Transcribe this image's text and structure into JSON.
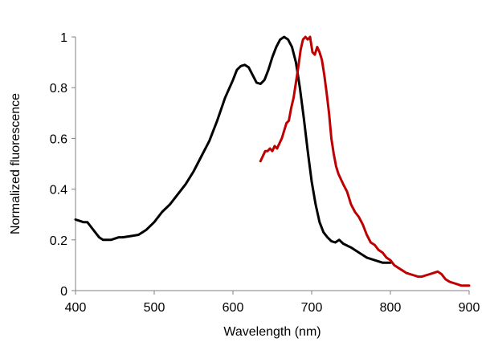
{
  "chart_data": {
    "type": "line",
    "title": "",
    "xlabel": "Wavelength (nm)",
    "ylabel": "Normalized fluorescence",
    "xlim": [
      400,
      900
    ],
    "ylim": [
      0,
      1
    ],
    "xticks": [
      400,
      500,
      600,
      700,
      800,
      900
    ],
    "yticks": [
      0,
      0.2,
      0.4,
      0.6,
      0.8,
      1
    ],
    "ytick_labels": [
      "0",
      "0.2",
      "0.4",
      "0.6",
      "0.8",
      "1"
    ],
    "grid": false,
    "legend": false,
    "series": [
      {
        "color": "#000000",
        "x": [
          400,
          405,
          410,
          415,
          420,
          425,
          430,
          435,
          440,
          445,
          450,
          455,
          460,
          470,
          480,
          490,
          500,
          510,
          520,
          530,
          540,
          550,
          560,
          570,
          580,
          590,
          600,
          605,
          610,
          615,
          620,
          625,
          630,
          635,
          640,
          645,
          650,
          655,
          660,
          665,
          670,
          675,
          680,
          685,
          690,
          695,
          700,
          705,
          710,
          715,
          720,
          725,
          730,
          735,
          740,
          750,
          760,
          770,
          780,
          790,
          800
        ],
        "y": [
          0.28,
          0.275,
          0.27,
          0.27,
          0.25,
          0.23,
          0.21,
          0.2,
          0.2,
          0.2,
          0.205,
          0.21,
          0.21,
          0.215,
          0.22,
          0.24,
          0.27,
          0.31,
          0.34,
          0.38,
          0.42,
          0.47,
          0.53,
          0.59,
          0.67,
          0.76,
          0.83,
          0.87,
          0.885,
          0.89,
          0.88,
          0.85,
          0.82,
          0.815,
          0.83,
          0.87,
          0.92,
          0.96,
          0.99,
          1.0,
          0.99,
          0.96,
          0.9,
          0.8,
          0.68,
          0.55,
          0.43,
          0.34,
          0.27,
          0.23,
          0.21,
          0.195,
          0.19,
          0.2,
          0.185,
          0.17,
          0.15,
          0.13,
          0.12,
          0.11,
          0.11
        ]
      },
      {
        "color": "#c00000",
        "x": [
          635,
          638,
          641,
          644,
          647,
          650,
          653,
          656,
          659,
          662,
          665,
          668,
          671,
          674,
          677,
          680,
          683,
          686,
          689,
          692,
          695,
          698,
          701,
          704,
          707,
          710,
          713,
          716,
          719,
          722,
          725,
          728,
          731,
          734,
          737,
          740,
          745,
          750,
          755,
          760,
          765,
          770,
          775,
          780,
          785,
          790,
          795,
          800,
          805,
          810,
          815,
          820,
          825,
          830,
          835,
          840,
          845,
          850,
          855,
          860,
          865,
          870,
          875,
          880,
          885,
          890,
          895,
          900
        ],
        "y": [
          0.51,
          0.53,
          0.55,
          0.55,
          0.56,
          0.55,
          0.57,
          0.56,
          0.58,
          0.6,
          0.63,
          0.66,
          0.67,
          0.72,
          0.76,
          0.82,
          0.88,
          0.95,
          0.99,
          1.0,
          0.99,
          1.0,
          0.94,
          0.93,
          0.96,
          0.94,
          0.91,
          0.85,
          0.78,
          0.7,
          0.6,
          0.54,
          0.49,
          0.46,
          0.44,
          0.42,
          0.39,
          0.34,
          0.31,
          0.29,
          0.26,
          0.22,
          0.19,
          0.18,
          0.16,
          0.15,
          0.13,
          0.12,
          0.1,
          0.09,
          0.08,
          0.07,
          0.065,
          0.06,
          0.055,
          0.055,
          0.06,
          0.065,
          0.07,
          0.075,
          0.065,
          0.045,
          0.035,
          0.03,
          0.025,
          0.02,
          0.02,
          0.02
        ]
      }
    ]
  }
}
